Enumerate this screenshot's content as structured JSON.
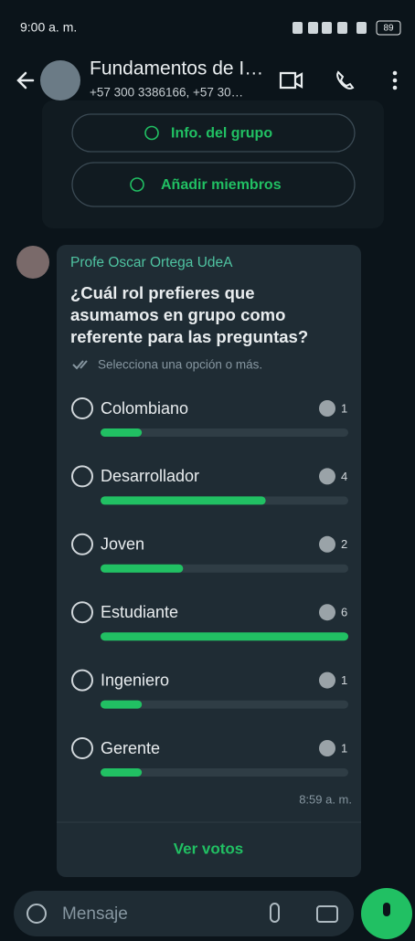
{
  "status_bar": {
    "time": "9:00 a. m.",
    "battery": "89"
  },
  "header": {
    "title": "Fundamentos de I…",
    "subtitle": "+57 300 3386166, +57 30…"
  },
  "group_actions": [
    "Info. del grupo",
    "Añadir miembros"
  ],
  "poll": {
    "sender": "Profe Oscar Ortega UdeA",
    "question_lines": [
      "¿Cuál rol prefieres que",
      "asumamos en grupo como",
      "referente para las preguntas?"
    ],
    "hint": "Selecciona una opción o más.",
    "options": [
      {
        "label": "Colombiano",
        "votes": 1
      },
      {
        "label": "Desarrollador",
        "votes": 4
      },
      {
        "label": "Joven",
        "votes": 2
      },
      {
        "label": "Estudiante",
        "votes": 6
      },
      {
        "label": "Ingeniero",
        "votes": 1
      },
      {
        "label": "Gerente",
        "votes": 1
      }
    ],
    "time": "8:59 a. m.",
    "action": "Ver votos"
  },
  "composer": {
    "placeholder": "Mensaje"
  }
}
